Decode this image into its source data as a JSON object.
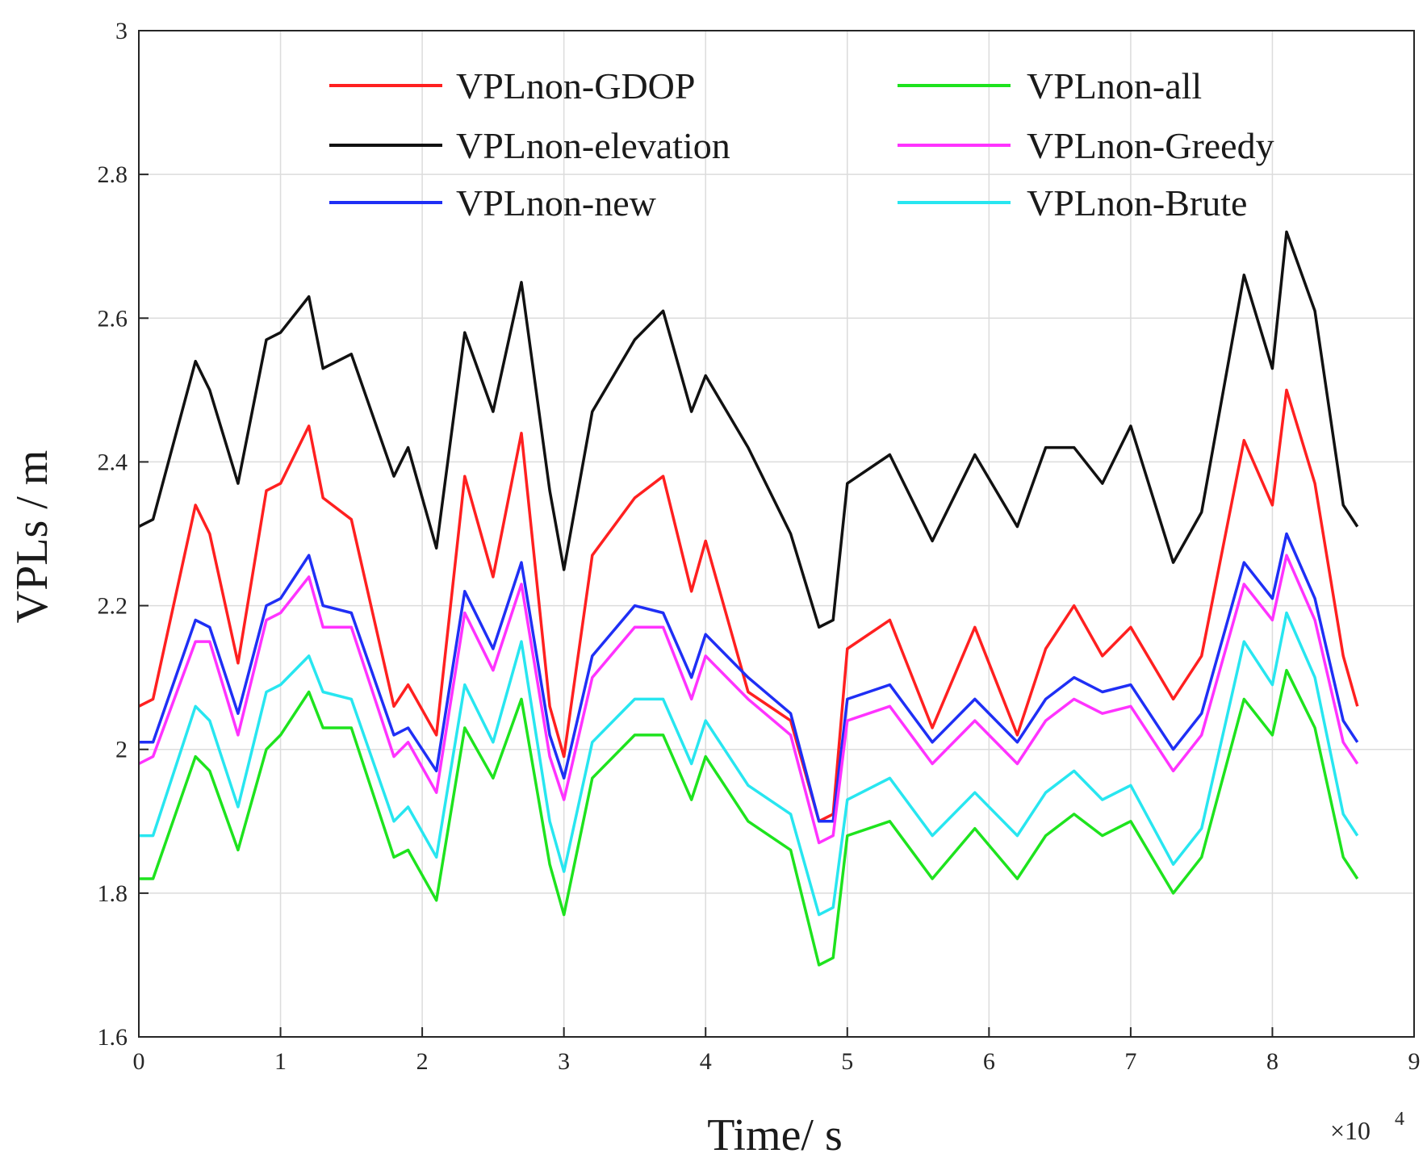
{
  "chart_data": {
    "type": "line",
    "xlabel": "Time/ s",
    "ylabel": "VPLs / m",
    "x_multiplier_label": "×10",
    "x_multiplier_exp": "4",
    "xlim": [
      0,
      9
    ],
    "ylim": [
      1.6,
      3.0
    ],
    "x_ticks": [
      "0",
      "1",
      "2",
      "3",
      "4",
      "5",
      "6",
      "7",
      "8",
      "9"
    ],
    "y_ticks": [
      "1.6",
      "1.8",
      "2",
      "2.2",
      "2.4",
      "2.6",
      "2.8",
      "3"
    ],
    "grid": true,
    "legend_position": "top",
    "x": [
      0,
      0.1,
      0.4,
      0.5,
      0.7,
      0.9,
      1.0,
      1.2,
      1.3,
      1.5,
      1.8,
      1.9,
      2.1,
      2.3,
      2.5,
      2.7,
      2.9,
      3.0,
      3.2,
      3.5,
      3.7,
      3.9,
      4.0,
      4.3,
      4.6,
      4.8,
      4.9,
      5.0,
      5.3,
      5.6,
      5.9,
      6.2,
      6.4,
      6.6,
      6.8,
      7.0,
      7.3,
      7.5,
      7.8,
      8.0,
      8.1,
      8.3,
      8.5,
      8.6
    ],
    "series": [
      {
        "name": "VPLnon-GDOP",
        "color": "#ff2020",
        "values": [
          2.06,
          2.07,
          2.34,
          2.3,
          2.12,
          2.36,
          2.37,
          2.45,
          2.35,
          2.32,
          2.06,
          2.09,
          2.02,
          2.38,
          2.24,
          2.44,
          2.06,
          1.99,
          2.27,
          2.35,
          2.38,
          2.22,
          2.29,
          2.08,
          2.04,
          1.9,
          1.91,
          2.14,
          2.18,
          2.03,
          2.17,
          2.02,
          2.14,
          2.2,
          2.13,
          2.17,
          2.07,
          2.13,
          2.43,
          2.34,
          2.5,
          2.37,
          2.13,
          2.06
        ]
      },
      {
        "name": "VPLnon-elevation",
        "color": "#111111",
        "values": [
          2.31,
          2.32,
          2.54,
          2.5,
          2.37,
          2.57,
          2.58,
          2.63,
          2.53,
          2.55,
          2.38,
          2.42,
          2.28,
          2.58,
          2.47,
          2.65,
          2.36,
          2.25,
          2.47,
          2.57,
          2.61,
          2.47,
          2.52,
          2.42,
          2.3,
          2.17,
          2.18,
          2.37,
          2.41,
          2.29,
          2.41,
          2.31,
          2.42,
          2.42,
          2.37,
          2.45,
          2.26,
          2.33,
          2.66,
          2.53,
          2.72,
          2.61,
          2.34,
          2.31
        ]
      },
      {
        "name": "VPLnon-new",
        "color": "#1f2ff5",
        "values": [
          2.01,
          2.01,
          2.18,
          2.17,
          2.05,
          2.2,
          2.21,
          2.27,
          2.2,
          2.19,
          2.02,
          2.03,
          1.97,
          2.22,
          2.14,
          2.26,
          2.02,
          1.96,
          2.13,
          2.2,
          2.19,
          2.1,
          2.16,
          2.1,
          2.05,
          1.9,
          1.9,
          2.07,
          2.09,
          2.01,
          2.07,
          2.01,
          2.07,
          2.1,
          2.08,
          2.09,
          2.0,
          2.05,
          2.26,
          2.21,
          2.3,
          2.21,
          2.04,
          2.01
        ]
      },
      {
        "name": "VPLnon-all",
        "color": "#1ee31e",
        "values": [
          1.82,
          1.82,
          1.99,
          1.97,
          1.86,
          2.0,
          2.02,
          2.08,
          2.03,
          2.03,
          1.85,
          1.86,
          1.79,
          2.03,
          1.96,
          2.07,
          1.84,
          1.77,
          1.96,
          2.02,
          2.02,
          1.93,
          1.99,
          1.9,
          1.86,
          1.7,
          1.71,
          1.88,
          1.9,
          1.82,
          1.89,
          1.82,
          1.88,
          1.91,
          1.88,
          1.9,
          1.8,
          1.85,
          2.07,
          2.02,
          2.11,
          2.03,
          1.85,
          1.82
        ]
      },
      {
        "name": "VPLnon-Greedy",
        "color": "#ff33ff",
        "values": [
          1.98,
          1.99,
          2.15,
          2.15,
          2.02,
          2.18,
          2.19,
          2.24,
          2.17,
          2.17,
          1.99,
          2.01,
          1.94,
          2.19,
          2.11,
          2.23,
          1.99,
          1.93,
          2.1,
          2.17,
          2.17,
          2.07,
          2.13,
          2.07,
          2.02,
          1.87,
          1.88,
          2.04,
          2.06,
          1.98,
          2.04,
          1.98,
          2.04,
          2.07,
          2.05,
          2.06,
          1.97,
          2.02,
          2.23,
          2.18,
          2.27,
          2.18,
          2.01,
          1.98
        ]
      },
      {
        "name": "VPLnon-Brute",
        "color": "#28e6f0",
        "values": [
          1.88,
          1.88,
          2.06,
          2.04,
          1.92,
          2.08,
          2.09,
          2.13,
          2.08,
          2.07,
          1.9,
          1.92,
          1.85,
          2.09,
          2.01,
          2.15,
          1.9,
          1.83,
          2.01,
          2.07,
          2.07,
          1.98,
          2.04,
          1.95,
          1.91,
          1.77,
          1.78,
          1.93,
          1.96,
          1.88,
          1.94,
          1.88,
          1.94,
          1.97,
          1.93,
          1.95,
          1.84,
          1.89,
          2.15,
          2.09,
          2.19,
          2.1,
          1.91,
          1.88
        ]
      }
    ]
  }
}
